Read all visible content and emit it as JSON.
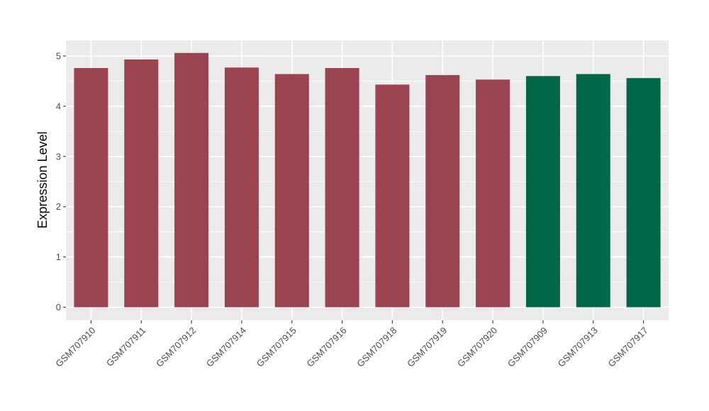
{
  "chart_data": {
    "type": "bar",
    "title": "",
    "xlabel": "",
    "ylabel": "Expression Level",
    "categories": [
      "GSM707910",
      "GSM707911",
      "GSM707912",
      "GSM707914",
      "GSM707915",
      "GSM707916",
      "GSM707918",
      "GSM707919",
      "GSM707920",
      "GSM707909",
      "GSM707913",
      "GSM707917"
    ],
    "values": [
      4.76,
      4.93,
      5.06,
      4.77,
      4.64,
      4.76,
      4.43,
      4.62,
      4.53,
      4.6,
      4.64,
      4.56
    ],
    "bar_colors": [
      "#9B4450",
      "#9B4450",
      "#9B4450",
      "#9B4450",
      "#9B4450",
      "#9B4450",
      "#9B4450",
      "#9B4450",
      "#9B4450",
      "#006849",
      "#006849",
      "#006849"
    ],
    "groups": [
      {
        "name": "maroon-group",
        "color": "#9B4450",
        "categories": [
          "GSM707910",
          "GSM707911",
          "GSM707912",
          "GSM707914",
          "GSM707915",
          "GSM707916",
          "GSM707918",
          "GSM707919",
          "GSM707920"
        ]
      },
      {
        "name": "green-group",
        "color": "#006849",
        "categories": [
          "GSM707909",
          "GSM707913",
          "GSM707917"
        ]
      }
    ],
    "ytick_labels": [
      "0",
      "1",
      "2",
      "3",
      "4",
      "5"
    ],
    "ytick_values": [
      0,
      1,
      2,
      3,
      4,
      5
    ],
    "ylim": [
      -0.26,
      5.31
    ],
    "grid": "on",
    "legend_position": "none",
    "panel_background": "#EBEBEB",
    "grid_color": "#FFFFFF",
    "tick_label_color": "#4D4D4D",
    "tick_mark_color": "#333333",
    "axis_title_color": "#000000",
    "figure_background": "#FFFFFF"
  }
}
